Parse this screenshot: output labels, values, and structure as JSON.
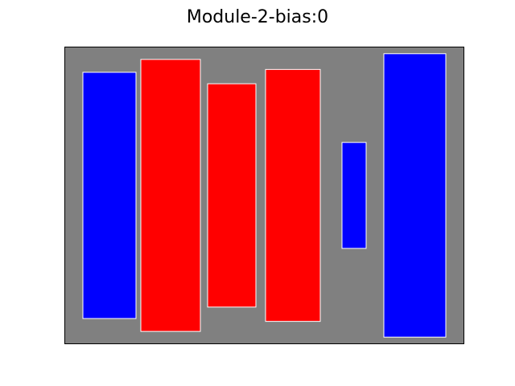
{
  "chart_data": {
    "type": "bar",
    "title": "Module-2-bias:0",
    "xlabel": "",
    "ylabel": "",
    "axes_ticks": false,
    "background_color": "#808080",
    "edge_color": "#ffffff",
    "colors": {
      "positive": "#0000ff",
      "negative": "#ff0000"
    },
    "bars": [
      {
        "sign": "positive",
        "value": 0.86
      },
      {
        "sign": "negative",
        "value": 0.95
      },
      {
        "sign": "negative",
        "value": 0.78
      },
      {
        "sign": "negative",
        "value": 0.88
      },
      {
        "sign": "positive",
        "value": 0.37
      },
      {
        "sign": "positive",
        "value": 0.99
      }
    ]
  }
}
